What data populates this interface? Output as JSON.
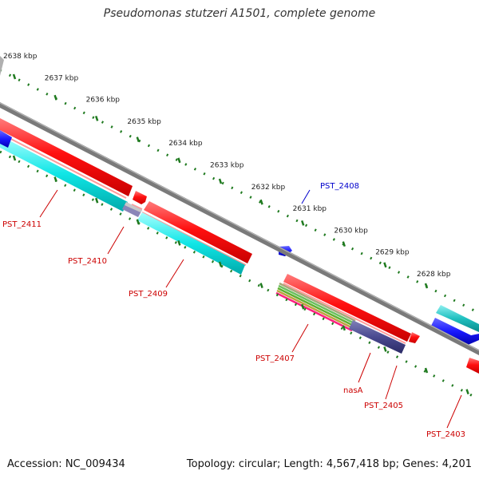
{
  "title": "Pseudomonas stutzeri A1501, complete genome",
  "footer": {
    "accession": "Accession: NC_009434",
    "stats": "Topology: circular; Length: 4,567,418 bp; Genes: 4,201"
  },
  "colors": {
    "backbone": "#8a8a8a",
    "ticks": "#1f7a1f",
    "cds": "#ff0000",
    "trna": "#00e0e0",
    "label_forward": "#0000cc",
    "label_reverse": "#cc0000"
  },
  "ticks": [
    "2638 kbp",
    "2637 kbp",
    "2636 kbp",
    "2635 kbp",
    "2634 kbp",
    "2633 kbp",
    "2632 kbp",
    "2631 kbp",
    "2630 kbp",
    "2629 kbp",
    "2628 kbp"
  ],
  "gene_labels": {
    "pst_2408": "PST_2408",
    "pst_2411": "PST_2411",
    "pst_2410": "PST_2410",
    "pst_2409": "PST_2409",
    "pst_2407": "PST_2407",
    "nasa": "nasA",
    "pst_2405": "PST_2405",
    "pst_2403": "PST_2403"
  }
}
